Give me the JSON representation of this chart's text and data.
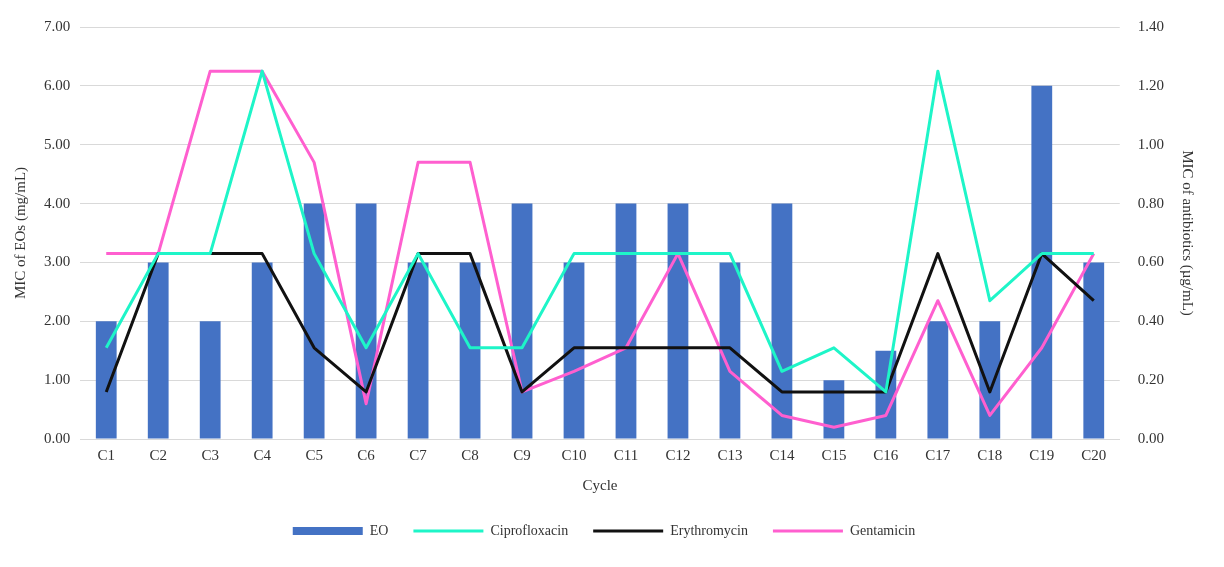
{
  "chart_data": {
    "type": "bar",
    "xlabel": "Cycle",
    "ylabel": "MIC of EOs (mg/mL)",
    "y2label": "MIC of antibiotics (µg/mL)",
    "categories": [
      "C1",
      "C2",
      "C3",
      "C4",
      "C5",
      "C6",
      "C7",
      "C8",
      "C9",
      "C10",
      "C11",
      "C12",
      "C13",
      "C14",
      "C15",
      "C16",
      "C17",
      "C18",
      "C19",
      "C20"
    ],
    "series": [
      {
        "name": "EO",
        "color": "#4472c4",
        "values": [
          2,
          3,
          2,
          3,
          4,
          4,
          3,
          3,
          4,
          3,
          4,
          4,
          3,
          4,
          1,
          1.5,
          2,
          2,
          6,
          3
        ]
      },
      {
        "name": "Ciprofloxacin",
        "type": "line",
        "axis": "y2",
        "color": "#1ef5c8",
        "values": [
          0.31,
          0.63,
          0.63,
          1.25,
          0.63,
          0.31,
          0.63,
          0.31,
          0.31,
          0.63,
          0.63,
          0.63,
          0.63,
          0.23,
          0.31,
          0.16,
          1.25,
          0.47,
          0.63,
          0.63
        ]
      },
      {
        "name": "Erythromycin",
        "type": "line",
        "axis": "y2",
        "color": "#111111",
        "values": [
          0.16,
          0.63,
          0.63,
          0.63,
          0.31,
          0.16,
          0.63,
          0.63,
          0.16,
          0.31,
          0.31,
          0.31,
          0.31,
          0.16,
          0.16,
          0.16,
          0.63,
          0.16,
          0.63,
          0.47
        ]
      },
      {
        "name": "Gentamicin",
        "type": "line",
        "axis": "y2",
        "color": "#ff5fcf",
        "values": [
          0.63,
          0.63,
          1.25,
          1.25,
          0.94,
          0.12,
          0.94,
          0.94,
          0.16,
          0.23,
          0.31,
          0.63,
          0.23,
          0.08,
          0.04,
          0.08,
          0.47,
          0.08,
          0.31,
          0.63
        ]
      }
    ],
    "ylim": [
      0,
      7
    ],
    "yticks": [
      {
        "value": 0,
        "label": "0.00"
      },
      {
        "value": 1,
        "label": "1.00"
      },
      {
        "value": 2,
        "label": "2.00"
      },
      {
        "value": 3,
        "label": "3.00"
      },
      {
        "value": 4,
        "label": "4.00"
      },
      {
        "value": 5,
        "label": "5.00"
      },
      {
        "value": 6,
        "label": "6.00"
      },
      {
        "value": 7,
        "label": "7.00"
      }
    ],
    "y2lim": [
      0,
      1.4
    ],
    "y2ticks": [
      {
        "value": 0,
        "label": "0.00"
      },
      {
        "value": 0.2,
        "label": "0.20"
      },
      {
        "value": 0.4,
        "label": "0.40"
      },
      {
        "value": 0.6,
        "label": "0.60"
      },
      {
        "value": 0.8,
        "label": "0.80"
      },
      {
        "value": 1,
        "label": "1.00"
      },
      {
        "value": 1.2,
        "label": "1.20"
      },
      {
        "value": 1.4,
        "label": "1.40"
      }
    ],
    "grid": "y",
    "legend": "bottom",
    "marker": "none",
    "line_style": "solid"
  }
}
